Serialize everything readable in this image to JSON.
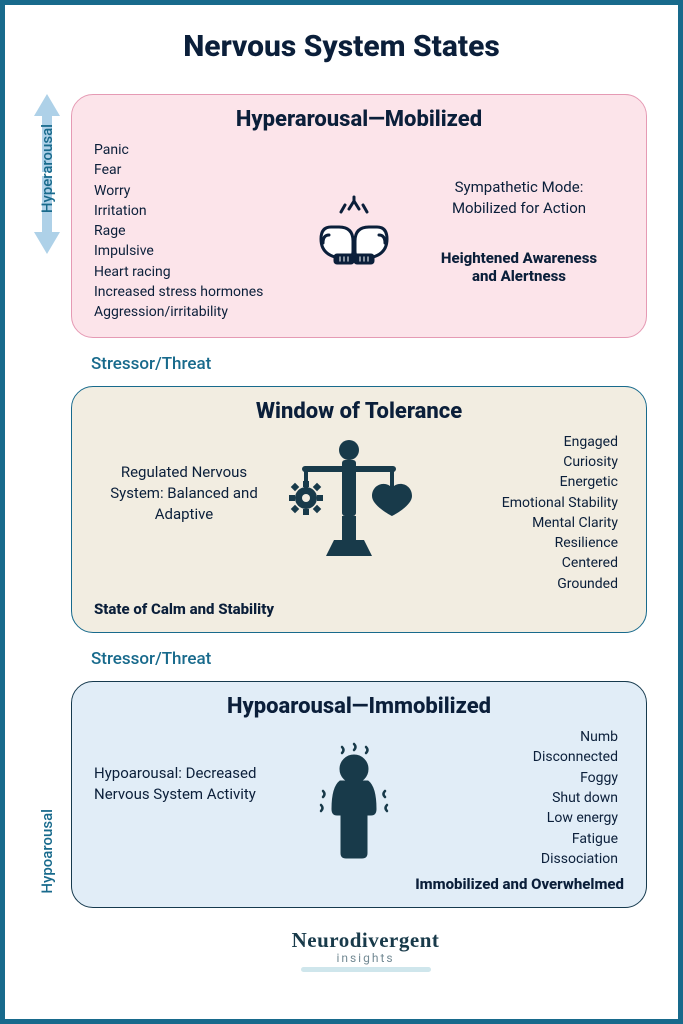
{
  "title": "Nervous System States",
  "sideLabels": {
    "top": "Hyperarousal",
    "bottom": "Hypoarousal"
  },
  "stressorLabel": "Stressor/Threat",
  "arrowColor": "#aed1e8",
  "borderColor": "#186a8c",
  "textDark": "#0b1f3a",
  "hyper": {
    "title": "Hyperarousal—Mobilized",
    "bg": "#fce4ea",
    "border": "#e59ab4",
    "symptoms": [
      "Panic",
      "Fear",
      "Worry",
      "Irritation",
      "Rage",
      "Impulsive",
      "Heart racing",
      "Increased stress hormones",
      "Aggression/irritability"
    ],
    "modeLine1": "Sympathetic Mode:",
    "modeLine2": "Mobilized for Action",
    "boldLine1": "Heightened Awareness",
    "boldLine2": "and Alertness",
    "iconColor": "#0b1f3a"
  },
  "window": {
    "title": "Window of Tolerance",
    "bg": "#f2ede1",
    "border": "#186a8c",
    "descLine1": "Regulated Nervous",
    "descLine2": "System: Balanced and",
    "descLine3": "Adaptive",
    "bold": "State of Calm and Stability",
    "traits": [
      "Engaged",
      "Curiosity",
      "Energetic",
      "Emotional Stability",
      "Mental Clarity",
      "Resilience",
      "Centered",
      "Grounded"
    ],
    "iconColor": "#183a4a"
  },
  "hypo": {
    "title": "Hypoarousal—Immobilized",
    "bg": "#e1edf7",
    "border": "#163a4e",
    "descLine1": "Hypoarousal: Decreased",
    "descLine2": "Nervous System Activity",
    "traits": [
      "Numb",
      "Disconnected",
      "Foggy",
      "Shut down",
      "Low energy",
      "Fatigue",
      "Dissociation"
    ],
    "bold": "Immobilized and Overwhelmed",
    "iconColor": "#183a4a"
  },
  "brand": {
    "name": "Neurodivergent",
    "sub": "insights"
  }
}
